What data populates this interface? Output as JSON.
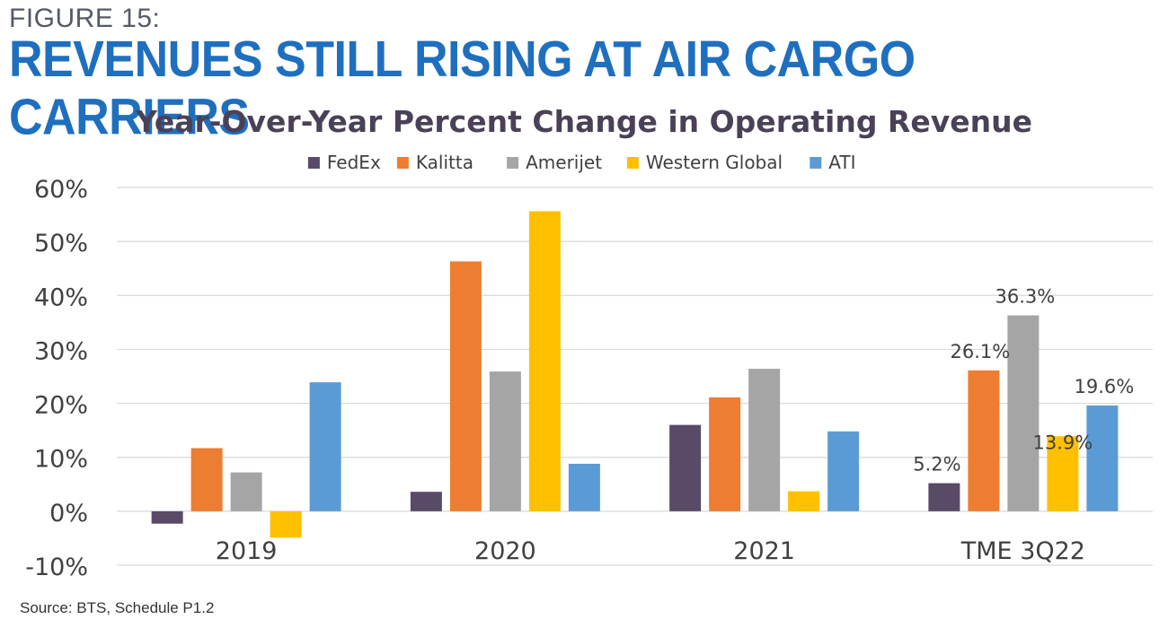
{
  "header": {
    "figure_label": "FIGURE 15:",
    "headline": "REVENUES STILL RISING AT AIR CARGO CARRIERS"
  },
  "footer": {
    "source": "Source: BTS, Schedule P1.2"
  },
  "colors": {
    "headline": "#1f6fbf",
    "title": "#4a4157",
    "gridline": "#d9d9d9",
    "tick_text": "#404040"
  },
  "chart_data": {
    "type": "bar",
    "title": "Year-Over-Year Percent Change in Operating Revenue",
    "xlabel": "",
    "ylabel": "",
    "categories": [
      "2019",
      "2020",
      "2021",
      "TME 3Q22"
    ],
    "ylim": [
      -10,
      60
    ],
    "yticks": [
      -10,
      0,
      10,
      20,
      30,
      40,
      50,
      60
    ],
    "ytick_labels": [
      "-10%",
      "0%",
      "10%",
      "20%",
      "30%",
      "40%",
      "50%",
      "60%"
    ],
    "grid": true,
    "legend_position": "top-center",
    "series": [
      {
        "name": "FedEx",
        "color": "#594a68",
        "values": [
          -2.3,
          3.6,
          16.0,
          5.2
        ]
      },
      {
        "name": "Kalitta",
        "color": "#ed7d31",
        "values": [
          11.7,
          46.3,
          21.1,
          26.1
        ]
      },
      {
        "name": "Amerijet",
        "color": "#a5a5a5",
        "values": [
          7.2,
          25.9,
          26.4,
          36.3
        ]
      },
      {
        "name": "Western Global",
        "color": "#ffc000",
        "values": [
          -4.9,
          55.6,
          3.7,
          13.9
        ]
      },
      {
        "name": "ATI",
        "color": "#5b9bd5",
        "values": [
          23.9,
          8.8,
          14.8,
          19.6
        ]
      }
    ],
    "data_labels": [
      {
        "category_index": 3,
        "series_index": 0,
        "text": "5.2%"
      },
      {
        "category_index": 3,
        "series_index": 1,
        "text": "26.1%"
      },
      {
        "category_index": 3,
        "series_index": 2,
        "text": "36.3%"
      },
      {
        "category_index": 3,
        "series_index": 3,
        "text": "13.9%"
      },
      {
        "category_index": 3,
        "series_index": 4,
        "text": "19.6%"
      }
    ]
  }
}
